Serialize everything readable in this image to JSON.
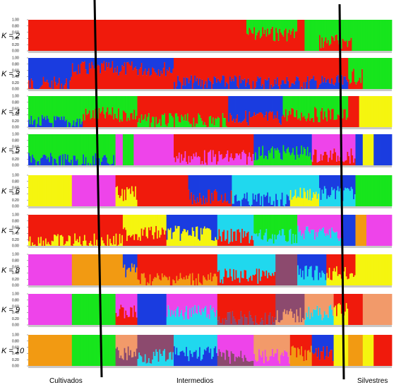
{
  "chart_data": {
    "type": "bar",
    "description_kind": "stacked ancestry bar plot",
    "y_ticks": [
      "0.00",
      "0.20",
      "0.40",
      "0.60",
      "0.80",
      "1.00"
    ],
    "ylim": [
      0,
      1
    ],
    "group_labels": [
      "Cultivados",
      "Intermedios",
      "Silvestres"
    ],
    "colors": {
      "red": "#f01a0c",
      "green": "#17e51c",
      "blue": "#1a3ce0",
      "yellow": "#f5f50f",
      "magenta": "#ee44ea",
      "cyan": "#20d8ee",
      "orange": "#f29a12",
      "purple": "#8c4a6e",
      "salmon": "#f29a6a"
    },
    "panels": [
      {
        "label": "K = 2",
        "segments": [
          {
            "from": 0.0,
            "to": 0.6,
            "stack": [
              "red"
            ]
          },
          {
            "from": 0.6,
            "to": 0.74,
            "stack": [
              "green",
              "red"
            ],
            "mix": 0.45
          },
          {
            "from": 0.74,
            "to": 0.76,
            "stack": [
              "red"
            ]
          },
          {
            "from": 0.76,
            "to": 0.8,
            "stack": [
              "green"
            ]
          },
          {
            "from": 0.8,
            "to": 0.89,
            "stack": [
              "green",
              "red"
            ],
            "mix": 0.7
          },
          {
            "from": 0.89,
            "to": 1.0,
            "stack": [
              "green"
            ]
          }
        ]
      },
      {
        "label": "K = 3",
        "segments": [
          {
            "from": 0.0,
            "to": 0.12,
            "stack": [
              "blue",
              "red"
            ],
            "mix": 0.85
          },
          {
            "from": 0.12,
            "to": 0.4,
            "stack": [
              "blue",
              "red"
            ],
            "mix": 0.35
          },
          {
            "from": 0.4,
            "to": 0.88,
            "stack": [
              "red",
              "blue"
            ],
            "mix": 0.8
          },
          {
            "from": 0.88,
            "to": 0.92,
            "stack": [
              "green",
              "red"
            ],
            "mix": 0.6
          },
          {
            "from": 0.92,
            "to": 1.0,
            "stack": [
              "green"
            ]
          }
        ]
      },
      {
        "label": "K = 4",
        "segments": [
          {
            "from": 0.0,
            "to": 0.15,
            "stack": [
              "green",
              "blue"
            ],
            "mix": 0.85
          },
          {
            "from": 0.15,
            "to": 0.3,
            "stack": [
              "green",
              "red"
            ],
            "mix": 0.6
          },
          {
            "from": 0.3,
            "to": 0.55,
            "stack": [
              "red",
              "green"
            ],
            "mix": 0.8
          },
          {
            "from": 0.55,
            "to": 0.7,
            "stack": [
              "blue",
              "red"
            ],
            "mix": 0.7
          },
          {
            "from": 0.7,
            "to": 0.88,
            "stack": [
              "green",
              "red"
            ],
            "mix": 0.6
          },
          {
            "from": 0.88,
            "to": 0.91,
            "stack": [
              "red"
            ]
          },
          {
            "from": 0.91,
            "to": 1.0,
            "stack": [
              "yellow"
            ]
          }
        ]
      },
      {
        "label": "K = 5",
        "segments": [
          {
            "from": 0.0,
            "to": 0.24,
            "stack": [
              "green",
              "blue"
            ],
            "mix": 0.85
          },
          {
            "from": 0.24,
            "to": 0.26,
            "stack": [
              "magenta"
            ]
          },
          {
            "from": 0.26,
            "to": 0.29,
            "stack": [
              "green"
            ]
          },
          {
            "from": 0.29,
            "to": 0.4,
            "stack": [
              "magenta"
            ]
          },
          {
            "from": 0.4,
            "to": 0.62,
            "stack": [
              "red",
              "magenta"
            ],
            "mix": 0.75
          },
          {
            "from": 0.62,
            "to": 0.78,
            "stack": [
              "blue",
              "green"
            ],
            "mix": 0.6
          },
          {
            "from": 0.78,
            "to": 0.9,
            "stack": [
              "magenta",
              "red"
            ],
            "mix": 0.7
          },
          {
            "from": 0.9,
            "to": 0.92,
            "stack": [
              "blue"
            ]
          },
          {
            "from": 0.92,
            "to": 0.95,
            "stack": [
              "yellow"
            ]
          },
          {
            "from": 0.95,
            "to": 1.0,
            "stack": [
              "blue"
            ]
          }
        ]
      },
      {
        "label": "K = 6",
        "segments": [
          {
            "from": 0.0,
            "to": 0.12,
            "stack": [
              "yellow"
            ]
          },
          {
            "from": 0.12,
            "to": 0.24,
            "stack": [
              "magenta"
            ]
          },
          {
            "from": 0.24,
            "to": 0.3,
            "stack": [
              "red",
              "yellow"
            ],
            "mix": 0.6
          },
          {
            "from": 0.3,
            "to": 0.44,
            "stack": [
              "red"
            ]
          },
          {
            "from": 0.44,
            "to": 0.56,
            "stack": [
              "blue",
              "red"
            ],
            "mix": 0.7
          },
          {
            "from": 0.56,
            "to": 0.72,
            "stack": [
              "cyan",
              "blue"
            ],
            "mix": 0.8
          },
          {
            "from": 0.72,
            "to": 0.8,
            "stack": [
              "cyan",
              "yellow"
            ],
            "mix": 0.6
          },
          {
            "from": 0.8,
            "to": 0.9,
            "stack": [
              "blue",
              "cyan"
            ],
            "mix": 0.6
          },
          {
            "from": 0.9,
            "to": 1.0,
            "stack": [
              "green"
            ]
          }
        ]
      },
      {
        "label": "K = 7",
        "segments": [
          {
            "from": 0.0,
            "to": 0.26,
            "stack": [
              "red",
              "yellow"
            ],
            "mix": 0.85
          },
          {
            "from": 0.26,
            "to": 0.38,
            "stack": [
              "yellow",
              "red"
            ],
            "mix": 0.6
          },
          {
            "from": 0.38,
            "to": 0.52,
            "stack": [
              "blue",
              "yellow"
            ],
            "mix": 0.6
          },
          {
            "from": 0.52,
            "to": 0.62,
            "stack": [
              "cyan",
              "red"
            ],
            "mix": 0.7
          },
          {
            "from": 0.62,
            "to": 0.74,
            "stack": [
              "green",
              "cyan"
            ],
            "mix": 0.7
          },
          {
            "from": 0.74,
            "to": 0.86,
            "stack": [
              "magenta",
              "cyan"
            ],
            "mix": 0.6
          },
          {
            "from": 0.86,
            "to": 0.9,
            "stack": [
              "blue"
            ]
          },
          {
            "from": 0.9,
            "to": 0.93,
            "stack": [
              "orange"
            ]
          },
          {
            "from": 0.93,
            "to": 1.0,
            "stack": [
              "magenta"
            ]
          }
        ]
      },
      {
        "label": "K = 8",
        "segments": [
          {
            "from": 0.0,
            "to": 0.12,
            "stack": [
              "magenta"
            ]
          },
          {
            "from": 0.12,
            "to": 0.26,
            "stack": [
              "orange"
            ]
          },
          {
            "from": 0.26,
            "to": 0.3,
            "stack": [
              "blue",
              "orange"
            ],
            "mix": 0.5
          },
          {
            "from": 0.3,
            "to": 0.52,
            "stack": [
              "red",
              "orange"
            ],
            "mix": 0.8
          },
          {
            "from": 0.52,
            "to": 0.68,
            "stack": [
              "cyan",
              "red"
            ],
            "mix": 0.7
          },
          {
            "from": 0.68,
            "to": 0.74,
            "stack": [
              "purple"
            ]
          },
          {
            "from": 0.74,
            "to": 0.82,
            "stack": [
              "blue",
              "cyan"
            ],
            "mix": 0.6
          },
          {
            "from": 0.82,
            "to": 0.9,
            "stack": [
              "red",
              "yellow"
            ],
            "mix": 0.6
          },
          {
            "from": 0.9,
            "to": 1.0,
            "stack": [
              "yellow"
            ]
          }
        ]
      },
      {
        "label": "K = 9",
        "segments": [
          {
            "from": 0.0,
            "to": 0.12,
            "stack": [
              "magenta"
            ]
          },
          {
            "from": 0.12,
            "to": 0.24,
            "stack": [
              "green"
            ]
          },
          {
            "from": 0.24,
            "to": 0.3,
            "stack": [
              "magenta",
              "red"
            ],
            "mix": 0.6
          },
          {
            "from": 0.3,
            "to": 0.38,
            "stack": [
              "blue"
            ]
          },
          {
            "from": 0.38,
            "to": 0.52,
            "stack": [
              "magenta",
              "cyan"
            ],
            "mix": 0.6
          },
          {
            "from": 0.52,
            "to": 0.68,
            "stack": [
              "red",
              "purple"
            ],
            "mix": 0.8
          },
          {
            "from": 0.68,
            "to": 0.76,
            "stack": [
              "purple",
              "salmon"
            ],
            "mix": 0.7
          },
          {
            "from": 0.76,
            "to": 0.84,
            "stack": [
              "salmon",
              "cyan"
            ],
            "mix": 0.6
          },
          {
            "from": 0.84,
            "to": 0.88,
            "stack": [
              "red",
              "yellow"
            ],
            "mix": 0.5
          },
          {
            "from": 0.88,
            "to": 0.92,
            "stack": [
              "red"
            ]
          },
          {
            "from": 0.92,
            "to": 1.0,
            "stack": [
              "salmon"
            ]
          }
        ]
      },
      {
        "label": "K = 10",
        "segments": [
          {
            "from": 0.0,
            "to": 0.12,
            "stack": [
              "orange"
            ]
          },
          {
            "from": 0.12,
            "to": 0.24,
            "stack": [
              "green"
            ]
          },
          {
            "from": 0.24,
            "to": 0.3,
            "stack": [
              "salmon",
              "purple"
            ],
            "mix": 0.6
          },
          {
            "from": 0.3,
            "to": 0.4,
            "stack": [
              "purple",
              "cyan"
            ],
            "mix": 0.7
          },
          {
            "from": 0.4,
            "to": 0.52,
            "stack": [
              "cyan",
              "blue"
            ],
            "mix": 0.6
          },
          {
            "from": 0.52,
            "to": 0.62,
            "stack": [
              "magenta",
              "purple"
            ],
            "mix": 0.7
          },
          {
            "from": 0.62,
            "to": 0.72,
            "stack": [
              "salmon",
              "magenta"
            ],
            "mix": 0.7
          },
          {
            "from": 0.72,
            "to": 0.78,
            "stack": [
              "red",
              "orange"
            ],
            "mix": 0.6
          },
          {
            "from": 0.78,
            "to": 0.84,
            "stack": [
              "blue",
              "red"
            ],
            "mix": 0.6
          },
          {
            "from": 0.84,
            "to": 0.88,
            "stack": [
              "yellow"
            ]
          },
          {
            "from": 0.88,
            "to": 0.92,
            "stack": [
              "orange"
            ]
          },
          {
            "from": 0.92,
            "to": 0.95,
            "stack": [
              "yellow"
            ]
          },
          {
            "from": 0.95,
            "to": 1.0,
            "stack": [
              "red"
            ]
          }
        ]
      }
    ]
  }
}
